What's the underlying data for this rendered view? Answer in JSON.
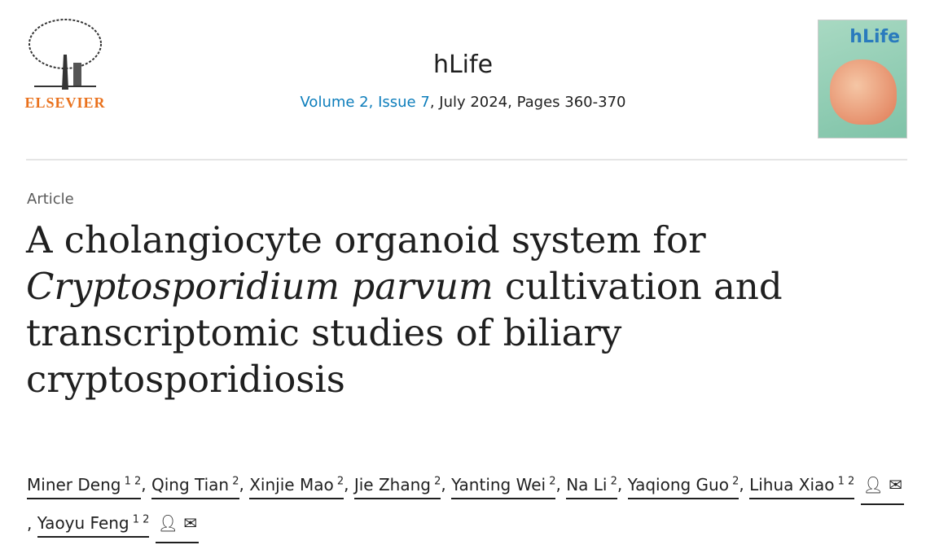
{
  "publisher": {
    "name": "ELSEVIER"
  },
  "journal": {
    "title": "hLife",
    "volume_issue": "Volume 2, Issue 7",
    "details": ", July 2024, Pages 360-370",
    "cover_title": "hLife"
  },
  "article": {
    "type": "Article",
    "title_pre": "A cholangiocyte organoid system for ",
    "title_italic": "Cryptosporidium parvum",
    "title_post": " cultivation and transcriptomic studies of biliary cryptosporidiosis"
  },
  "authors": [
    {
      "name": "Miner Deng",
      "aff": "1 2"
    },
    {
      "name": "Qing Tian",
      "aff": "2"
    },
    {
      "name": "Xinjie Mao",
      "aff": "2"
    },
    {
      "name": "Jie Zhang",
      "aff": "2"
    },
    {
      "name": "Yanting Wei",
      "aff": "2"
    },
    {
      "name": "Na Li",
      "aff": "2"
    },
    {
      "name": "Yaqiong Guo",
      "aff": "2"
    },
    {
      "name": "Lihua Xiao",
      "aff": "1 2",
      "icons": [
        "person-icon",
        "email-icon"
      ]
    },
    {
      "name": "Yaoyu Feng",
      "aff": "1 2",
      "icons": [
        "person-icon",
        "email-icon"
      ]
    }
  ],
  "colors": {
    "link": "#0c7dbb",
    "elsevier": "#e9711c"
  }
}
